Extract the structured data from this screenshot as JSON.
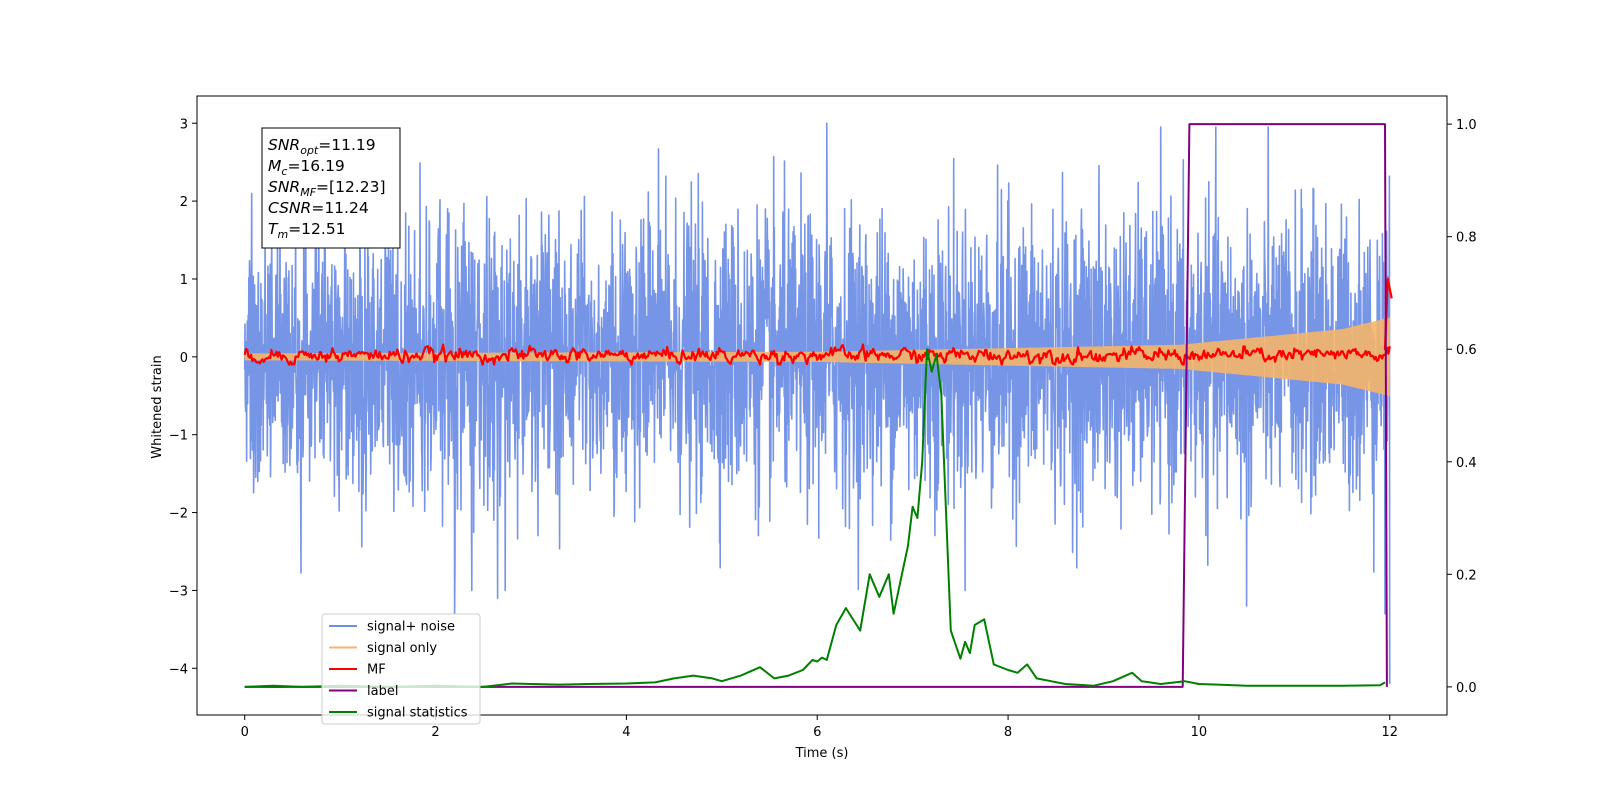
{
  "chart_data": {
    "type": "line",
    "xlabel": "Time (s)",
    "ylabel": "Whitened strain",
    "xlim": [
      -0.5,
      12.6
    ],
    "ylim": [
      -4.6,
      3.35
    ],
    "y2lim": [
      -0.05,
      1.05
    ],
    "x_ticks": [
      0,
      2,
      4,
      6,
      8,
      10,
      12
    ],
    "y_ticks": [
      -4,
      -3,
      -2,
      -1,
      0,
      1,
      2,
      3
    ],
    "y2_ticks": [
      0.0,
      0.2,
      0.4,
      0.6,
      0.8,
      1.0
    ],
    "x_tick_labels": [
      "0",
      "2",
      "4",
      "6",
      "8",
      "10",
      "12"
    ],
    "y_tick_labels": [
      "−4",
      "−3",
      "−2",
      "−1",
      "0",
      "1",
      "2",
      "3"
    ],
    "y2_tick_labels": [
      "0.0",
      "0.2",
      "0.4",
      "0.6",
      "0.8",
      "1.0"
    ],
    "legend_position": "lower-left",
    "annotation": {
      "lines": [
        {
          "base": "SNR",
          "sub": "opt",
          "value": "=11.19"
        },
        {
          "base": "M",
          "sub": "c",
          "value": "=16.19"
        },
        {
          "base": "SNR",
          "sub": "MF",
          "value": "=[12.23]"
        },
        {
          "base": "CSNR",
          "sub": "",
          "value": "=11.24"
        },
        {
          "base": "T",
          "sub": "m",
          "value": "=12.51"
        }
      ]
    },
    "series": [
      {
        "name": "signal+ noise",
        "color": "#6f8fe6",
        "axis": "left",
        "noise": true,
        "t_range": [
          0,
          12
        ],
        "sigma": 0.9,
        "notable_extremes": [
          [
            2.2,
            -3.3
          ],
          [
            2.65,
            -3.1
          ],
          [
            6.1,
            3.0
          ],
          [
            10.5,
            -3.2
          ],
          [
            11.95,
            -3.3
          ],
          [
            12.0,
            -4.2
          ]
        ]
      },
      {
        "name": "signal only",
        "color": "#f5b56a",
        "axis": "left",
        "chirp": true,
        "t_range": [
          0,
          12
        ],
        "amplitude_envelope": [
          [
            0,
            0.04
          ],
          [
            6,
            0.06
          ],
          [
            9.8,
            0.15
          ],
          [
            11.5,
            0.35
          ],
          [
            12.0,
            0.5
          ]
        ]
      },
      {
        "name": "MF",
        "color": "#ff0000",
        "axis": "left",
        "t_range": [
          0,
          12
        ],
        "typical_band": [
          -0.1,
          0.2
        ],
        "end_points": [
          [
            11.95,
            0.1
          ],
          [
            11.98,
            1.0
          ],
          [
            12.02,
            0.75
          ]
        ]
      },
      {
        "name": "label",
        "color": "#800080",
        "axis": "right",
        "x": [
          0,
          9.83,
          9.9,
          11.95,
          11.97
        ],
        "values": [
          0,
          0,
          1,
          1,
          0
        ]
      },
      {
        "name": "signal statistics",
        "color": "#008000",
        "axis": "right",
        "x": [
          0,
          0.3,
          0.6,
          1.0,
          1.5,
          2.0,
          2.5,
          2.8,
          3.0,
          3.3,
          3.6,
          4.0,
          4.3,
          4.5,
          4.7,
          4.9,
          5.0,
          5.2,
          5.4,
          5.55,
          5.7,
          5.85,
          5.95,
          6.0,
          6.05,
          6.1,
          6.2,
          6.3,
          6.45,
          6.55,
          6.65,
          6.75,
          6.8,
          6.9,
          6.95,
          7.0,
          7.05,
          7.1,
          7.15,
          7.2,
          7.25,
          7.3,
          7.4,
          7.5,
          7.55,
          7.6,
          7.65,
          7.75,
          7.85,
          8.0,
          8.1,
          8.2,
          8.3,
          8.45,
          8.6,
          8.9,
          9.1,
          9.3,
          9.4,
          9.6,
          9.75,
          9.85,
          10.0,
          10.2,
          10.5,
          11.0,
          11.5,
          11.9,
          11.95
        ],
        "values": [
          0.0,
          0.002,
          0.0,
          0.002,
          0.0,
          0.002,
          0.0,
          0.006,
          0.005,
          0.004,
          0.005,
          0.006,
          0.008,
          0.015,
          0.02,
          0.015,
          0.01,
          0.02,
          0.035,
          0.015,
          0.02,
          0.03,
          0.048,
          0.045,
          0.052,
          0.048,
          0.11,
          0.14,
          0.1,
          0.2,
          0.16,
          0.2,
          0.13,
          0.21,
          0.25,
          0.32,
          0.3,
          0.4,
          0.6,
          0.56,
          0.59,
          0.52,
          0.1,
          0.05,
          0.08,
          0.06,
          0.11,
          0.12,
          0.04,
          0.03,
          0.025,
          0.04,
          0.015,
          0.01,
          0.005,
          0.002,
          0.01,
          0.025,
          0.01,
          0.005,
          0.008,
          0.01,
          0.005,
          0.004,
          0.002,
          0.002,
          0.002,
          0.003,
          0.008
        ]
      }
    ]
  }
}
